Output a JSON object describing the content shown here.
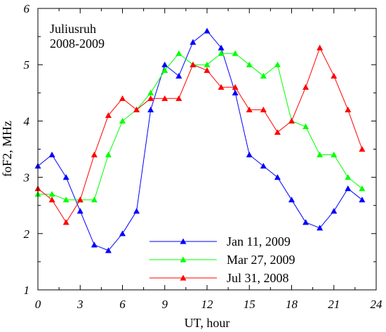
{
  "chart_data": {
    "type": "line",
    "xlabel": "UT, hour",
    "ylabel": "foF2, MHz",
    "xlim": [
      0,
      24
    ],
    "ylim": [
      1,
      6
    ],
    "xticks": [
      "0",
      "3",
      "6",
      "9",
      "12",
      "15",
      "18",
      "21",
      "24"
    ],
    "yticks": [
      "1",
      "2",
      "3",
      "4",
      "5",
      "6"
    ],
    "annotation_lines": [
      "Juliusruh",
      "2008-2009"
    ],
    "legend_position": "bottom-center",
    "grid": false,
    "x": [
      0,
      1,
      2,
      3,
      4,
      5,
      6,
      7,
      8,
      9,
      10,
      11,
      12,
      13,
      14,
      15,
      16,
      17,
      18,
      19,
      20,
      21,
      22,
      23
    ],
    "series": [
      {
        "name": "Jan 11, 2009",
        "color": "#0000ff",
        "marker": "triangle",
        "values": [
          3.2,
          3.4,
          3.0,
          2.4,
          1.8,
          1.7,
          2.0,
          2.4,
          4.2,
          5.0,
          4.8,
          5.4,
          5.6,
          5.3,
          4.5,
          3.4,
          3.2,
          3.0,
          2.6,
          2.2,
          2.1,
          2.4,
          2.8,
          2.6
        ]
      },
      {
        "name": "Mar 27, 2009",
        "color": "#00ff00",
        "marker": "triangle",
        "values": [
          2.7,
          2.7,
          2.6,
          2.6,
          2.6,
          3.4,
          4.0,
          4.2,
          4.5,
          4.9,
          5.2,
          5.0,
          5.0,
          5.2,
          5.2,
          5.0,
          4.8,
          5.0,
          4.0,
          3.9,
          3.4,
          3.4,
          3.0,
          2.8
        ]
      },
      {
        "name": "Jul 31, 2008",
        "color": "#ff0000",
        "marker": "triangle",
        "values": [
          2.8,
          2.6,
          2.2,
          2.6,
          3.4,
          4.1,
          4.4,
          4.2,
          4.4,
          4.4,
          4.4,
          5.0,
          4.9,
          4.6,
          4.6,
          4.2,
          4.2,
          3.8,
          4.0,
          4.6,
          5.3,
          4.8,
          4.2,
          3.5
        ]
      }
    ]
  }
}
